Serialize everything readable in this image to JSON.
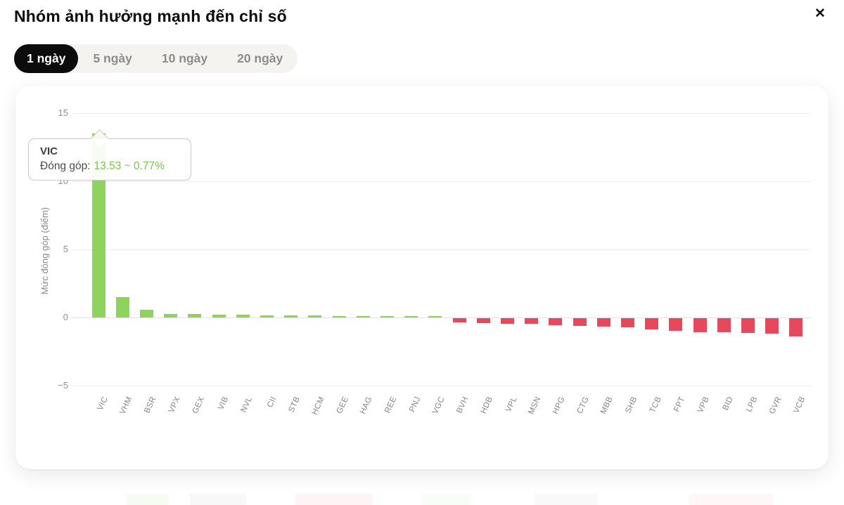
{
  "header": {
    "title": "Nhóm ảnh hưởng mạnh đến chỉ số",
    "close_label": "✕"
  },
  "tabs": {
    "items": [
      {
        "label": "1 ngày",
        "active": true
      },
      {
        "label": "5 ngày",
        "active": false
      },
      {
        "label": "10 ngày",
        "active": false
      },
      {
        "label": "20 ngày",
        "active": false
      }
    ]
  },
  "tooltip": {
    "ticker": "VIC",
    "label": "Đóng góp:",
    "value_text": "13.53 ~ 0.77%",
    "value_color": "#7cc351"
  },
  "chart_data": {
    "type": "bar",
    "title": "Nhóm ảnh hưởng mạnh đến chỉ số",
    "xlabel": "",
    "ylabel": "Mức đóng góp (điểm)",
    "ylim": [
      -5,
      15
    ],
    "yticks": [
      15,
      10,
      5,
      0,
      -5
    ],
    "grid": true,
    "legend": "none",
    "highlighted_category": "VIC",
    "categories": [
      "VIC",
      "VHM",
      "BSR",
      "VPX",
      "GEX",
      "VIB",
      "NVL",
      "CII",
      "STB",
      "HCM",
      "GEE",
      "HAG",
      "REE",
      "PNJ",
      "VGC",
      "BVH",
      "HDB",
      "VPL",
      "MSN",
      "HPG",
      "CTG",
      "MBB",
      "SHB",
      "TCB",
      "FPT",
      "VPB",
      "BID",
      "LPB",
      "GVR",
      "VCB"
    ],
    "values": [
      13.53,
      1.5,
      0.55,
      0.26,
      0.25,
      0.22,
      0.21,
      0.18,
      0.16,
      0.14,
      0.12,
      0.1,
      0.08,
      0.07,
      0.06,
      -0.3,
      -0.38,
      -0.42,
      -0.43,
      -0.5,
      -0.55,
      -0.6,
      -0.65,
      -0.85,
      -0.92,
      -1.02,
      -1.05,
      -1.1,
      -1.15,
      -1.35
    ],
    "positive_color": "#8dd35c",
    "negative_color": "#e6495c"
  }
}
